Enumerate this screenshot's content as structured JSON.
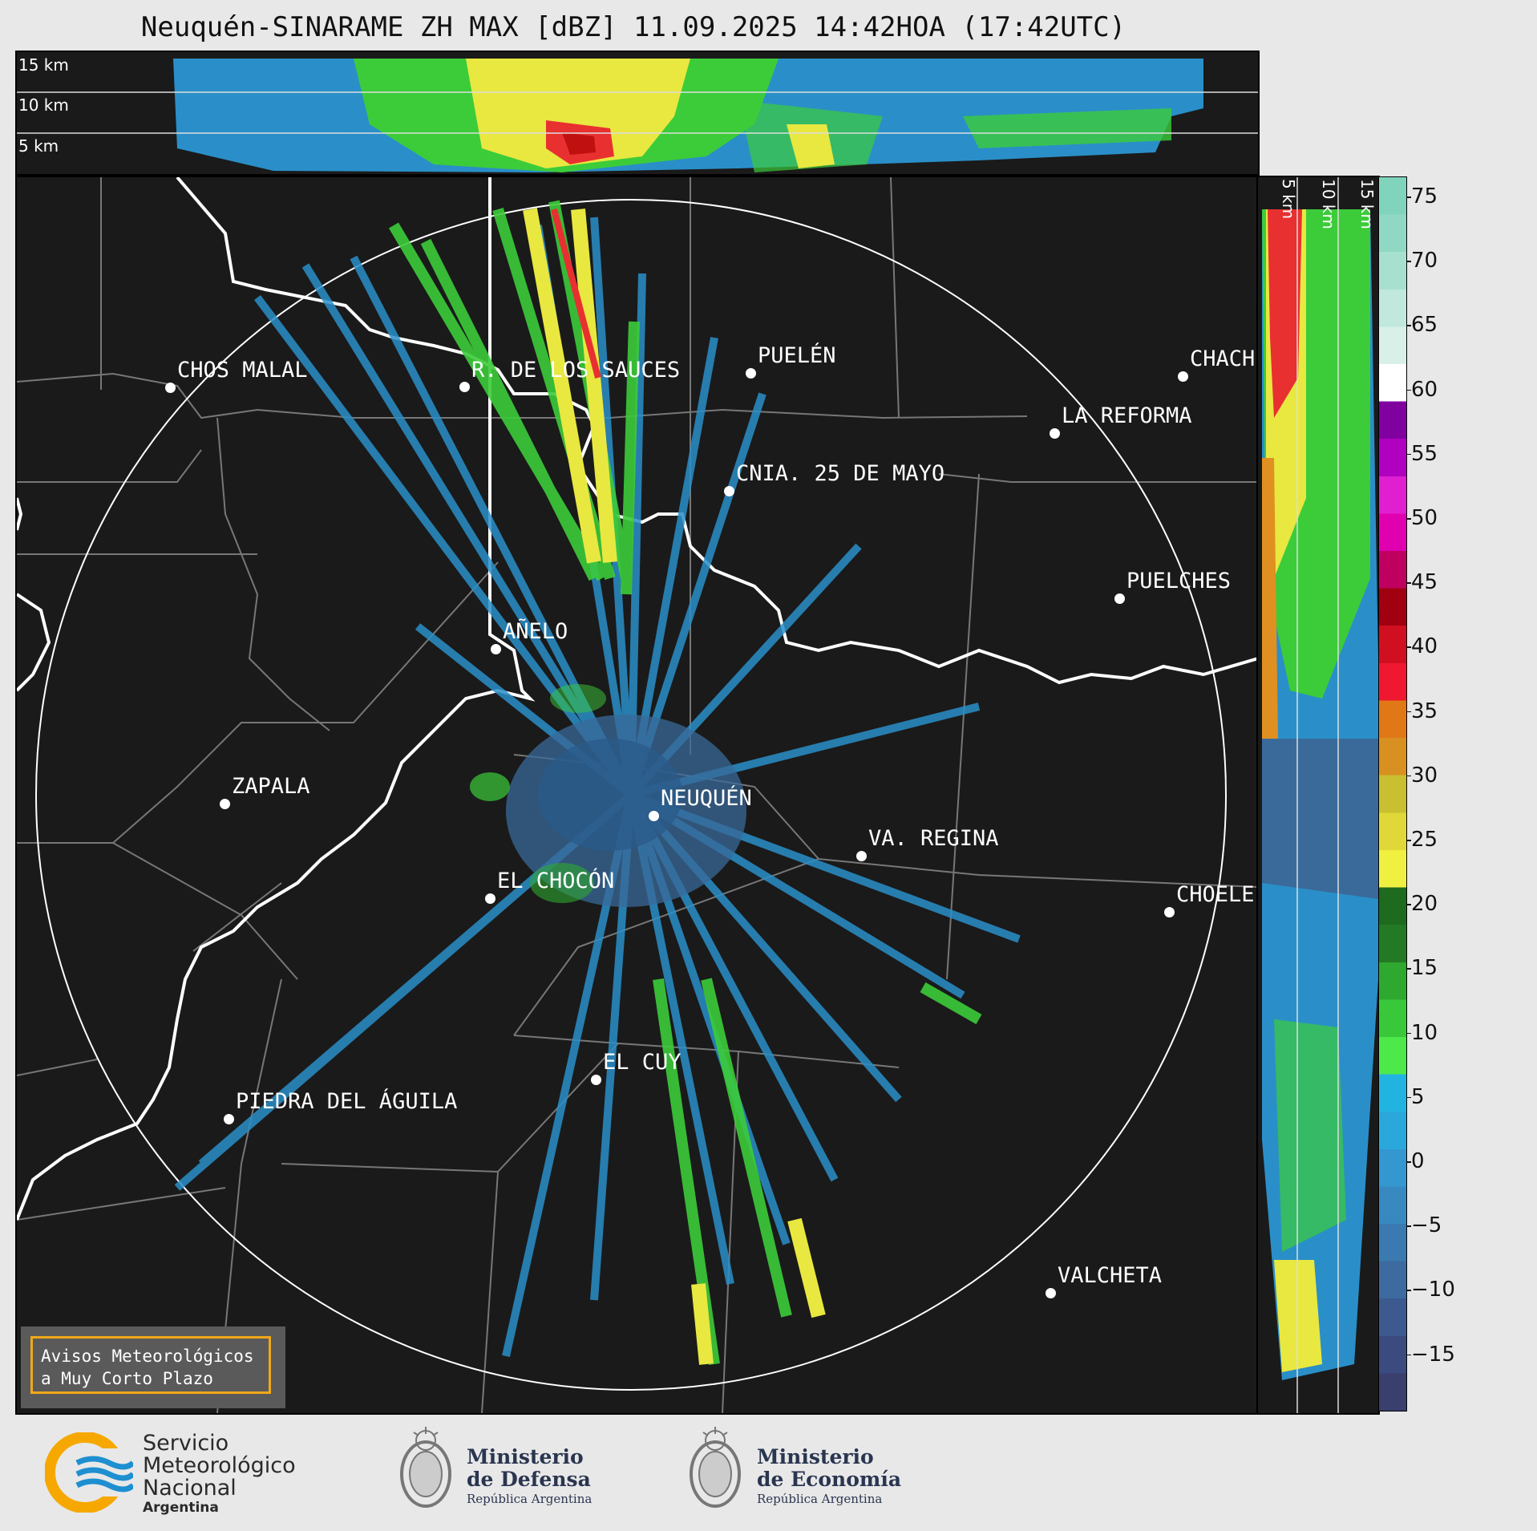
{
  "title": "Neuquén-SINARAME ZH MAX [dBZ] 11.09.2025 14:42HOA (17:42UTC)",
  "top_panel": {
    "height_labels": [
      "15 km",
      "10 km",
      "5 km"
    ]
  },
  "side_panel": {
    "height_labels": [
      "5 km",
      "10 km",
      "15 km"
    ]
  },
  "colorbar": {
    "ticks": [
      "75",
      "70",
      "65",
      "60",
      "55",
      "50",
      "45",
      "40",
      "35",
      "30",
      "25",
      "20",
      "15",
      "10",
      "5",
      "0",
      "−5",
      "−10",
      "−15"
    ],
    "colors": [
      "#3a3f6e",
      "#3b4a7f",
      "#3c5a8f",
      "#3d6a9f",
      "#3a7ab0",
      "#3789c0",
      "#3497d0",
      "#2aa8dc",
      "#22b4e0",
      "#4de84a",
      "#38c83a",
      "#2ea82e",
      "#247a24",
      "#1e6a1e",
      "#f0f040",
      "#e0d838",
      "#c8c030",
      "#d89020",
      "#e07818",
      "#f01830",
      "#d01020",
      "#a00010",
      "#c00060",
      "#e000b0",
      "#e020d0",
      "#b000c0",
      "#8000a0",
      "#ffffff",
      "#d8f0e8",
      "#c0e8dc",
      "#a8e0d0",
      "#90d8c4",
      "#80d4bc"
    ]
  },
  "cities": [
    {
      "name": "CHOS MALAL"
    },
    {
      "name": "R. DE LOS SAUCES"
    },
    {
      "name": "PUELÉN"
    },
    {
      "name": "CHACH"
    },
    {
      "name": "LA REFORMA"
    },
    {
      "name": "CNIA. 25 DE MAYO"
    },
    {
      "name": "PUELCHES"
    },
    {
      "name": "AÑELO"
    },
    {
      "name": "ZAPALA"
    },
    {
      "name": "NEUQUÉN"
    },
    {
      "name": "VA. REGINA"
    },
    {
      "name": "EL CHOCÓN"
    },
    {
      "name": "CHOELE"
    },
    {
      "name": "EL CUY"
    },
    {
      "name": "PIEDRA DEL ÁGUILA"
    },
    {
      "name": "VALCHETA"
    }
  ],
  "alert": {
    "line1": "Avisos Meteorológicos",
    "line2": "a Muy Corto Plazo"
  },
  "logos": {
    "smn": {
      "line1": "Servicio",
      "line2": "Meteorológico",
      "line3": "Nacional",
      "line4": "Argentina"
    },
    "defensa": {
      "line1": "Ministerio",
      "line2": "de Defensa",
      "line3": "República Argentina"
    },
    "economia": {
      "line1": "Ministerio",
      "line2": "de Economía",
      "line3": "República Argentina"
    }
  }
}
